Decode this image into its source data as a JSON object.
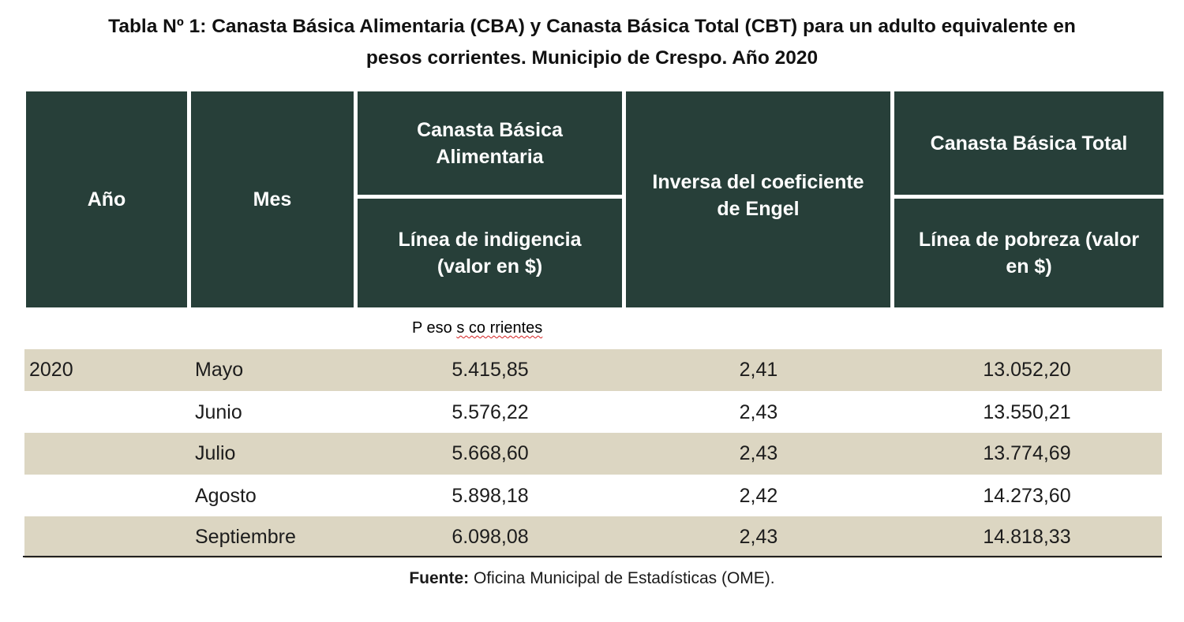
{
  "title_line1": "Tabla Nº 1: Canasta Básica Alimentaria (CBA) y Canasta Básica Total (CBT) para un adulto equivalente en",
  "title_line2": "pesos corrientes. Municipio de Crespo. Año 2020",
  "headers": {
    "year": "Año",
    "month": "Mes",
    "cba_line1": "Canasta Básica",
    "cba_line2": "Alimentaria",
    "cba_sub_line1": "Línea de indigencia",
    "cba_sub_line2": "(valor en $)",
    "engel_line1": "Inversa del coeficiente",
    "engel_line2": "de Engel",
    "cbt": "Canasta Básica Total",
    "cbt_sub_line1": "Línea de pobreza (valor",
    "cbt_sub_line2": "en $)"
  },
  "units_note": {
    "part1": "P eso ",
    "part2": "s co rrientes"
  },
  "rows": [
    {
      "year": "2020",
      "month": "Mayo",
      "cba": "5.415,85",
      "engel": "2,41",
      "cbt": "13.052,20"
    },
    {
      "year": "",
      "month": "Junio",
      "cba": "5.576,22",
      "engel": "2,43",
      "cbt": "13.550,21"
    },
    {
      "year": "",
      "month": "Julio",
      "cba": "5.668,60",
      "engel": "2,43",
      "cbt": "13.774,69"
    },
    {
      "year": "",
      "month": "Agosto",
      "cba": "5.898,18",
      "engel": "2,42",
      "cbt": "14.273,60"
    },
    {
      "year": "",
      "month": "Septiembre",
      "cba": "6.098,08",
      "engel": "2,43",
      "cbt": "14.818,33"
    }
  ],
  "source": {
    "label": "Fuente:",
    "text": " Oficina Municipal de Estadísticas (OME)."
  },
  "colors": {
    "header_bg": "#273f39",
    "row_shade": "#dcd6c2"
  }
}
